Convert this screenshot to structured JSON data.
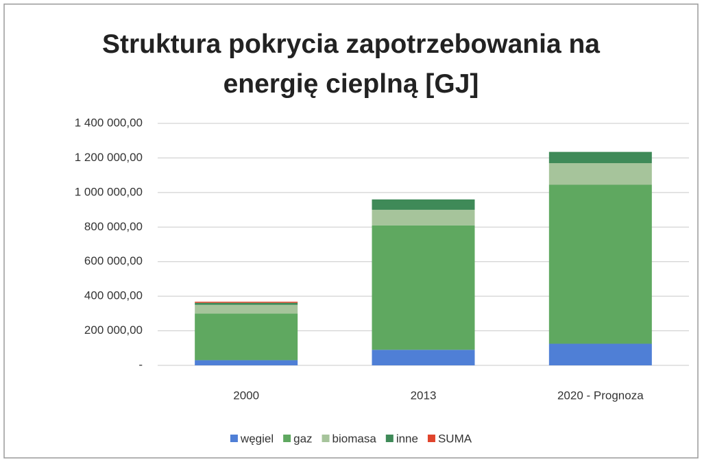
{
  "chart_data": {
    "type": "stacked_bar",
    "title": "Struktura pokrycia zapotrzebowania na energię cieplną [GJ]",
    "categories": [
      "2000",
      "2013",
      "2020 - Prognoza"
    ],
    "series": [
      {
        "name": "węgiel",
        "color": "#4f7fd6",
        "values": [
          30000,
          90000,
          125000
        ]
      },
      {
        "name": "gaz",
        "color": "#5fa860",
        "values": [
          270000,
          720000,
          920000
        ]
      },
      {
        "name": "biomasa",
        "color": "#a6c49b",
        "values": [
          50000,
          90000,
          125000
        ]
      },
      {
        "name": "inne",
        "color": "#3f8a58",
        "values": [
          12000,
          60000,
          65000
        ]
      },
      {
        "name": "SUMA",
        "color": "#e0442c",
        "values": [
          6000,
          0,
          0
        ]
      }
    ],
    "ylim": [
      0,
      1400000
    ],
    "yticks": [
      {
        "value": 0,
        "label": "-"
      },
      {
        "value": 200000,
        "label": "200 000,00"
      },
      {
        "value": 400000,
        "label": "400 000,00"
      },
      {
        "value": 600000,
        "label": "600 000,00"
      },
      {
        "value": 800000,
        "label": "800 000,00"
      },
      {
        "value": 1000000,
        "label": "1 000 000,00"
      },
      {
        "value": 1200000,
        "label": "1 200 000,00"
      },
      {
        "value": 1400000,
        "label": "1 400 000,00"
      }
    ],
    "grid": true,
    "legend": "bottom"
  }
}
